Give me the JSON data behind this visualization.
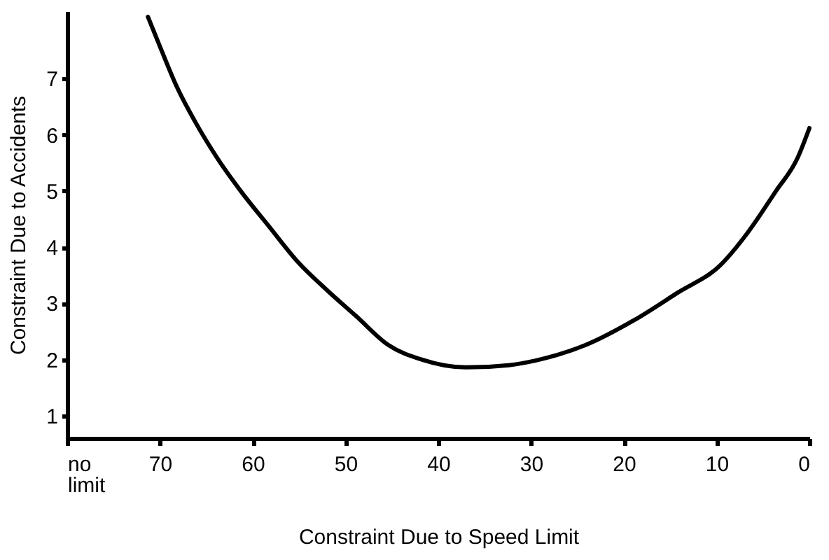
{
  "chart_data": {
    "type": "line",
    "xlabel": "Constraint Due to Speed Limit",
    "ylabel": "Constraint Due to Accidents",
    "x": [
      71.3,
      70,
      68.2,
      66.2,
      63.8,
      61.3,
      58.3,
      55.1,
      51.9,
      48.9,
      45.4,
      41.8,
      37.0,
      32.4,
      28.1,
      24.1,
      18.9,
      14.2,
      9.6,
      6.6,
      3.6,
      1.3,
      0
    ],
    "series": [
      {
        "color": "#000000",
        "values": [
          8.1,
          7.57,
          6.86,
          6.23,
          5.58,
          5.0,
          4.38,
          3.73,
          3.22,
          2.78,
          2.26,
          2.0,
          1.86,
          1.9,
          2.04,
          2.26,
          2.7,
          3.19,
          3.68,
          4.27,
          5.0,
          5.58,
          6.12
        ]
      }
    ],
    "xlim": [
      80,
      0
    ],
    "xticks": [
      {
        "value": 80,
        "label": "no limit"
      },
      70,
      60,
      50,
      40,
      30,
      20,
      10,
      0
    ],
    "ylim": [
      0.6,
      8.2
    ],
    "yticks": [
      1,
      2,
      3,
      4,
      5,
      6,
      7
    ],
    "grid": false,
    "legend": false,
    "marker": "none",
    "line_style": "solid"
  }
}
